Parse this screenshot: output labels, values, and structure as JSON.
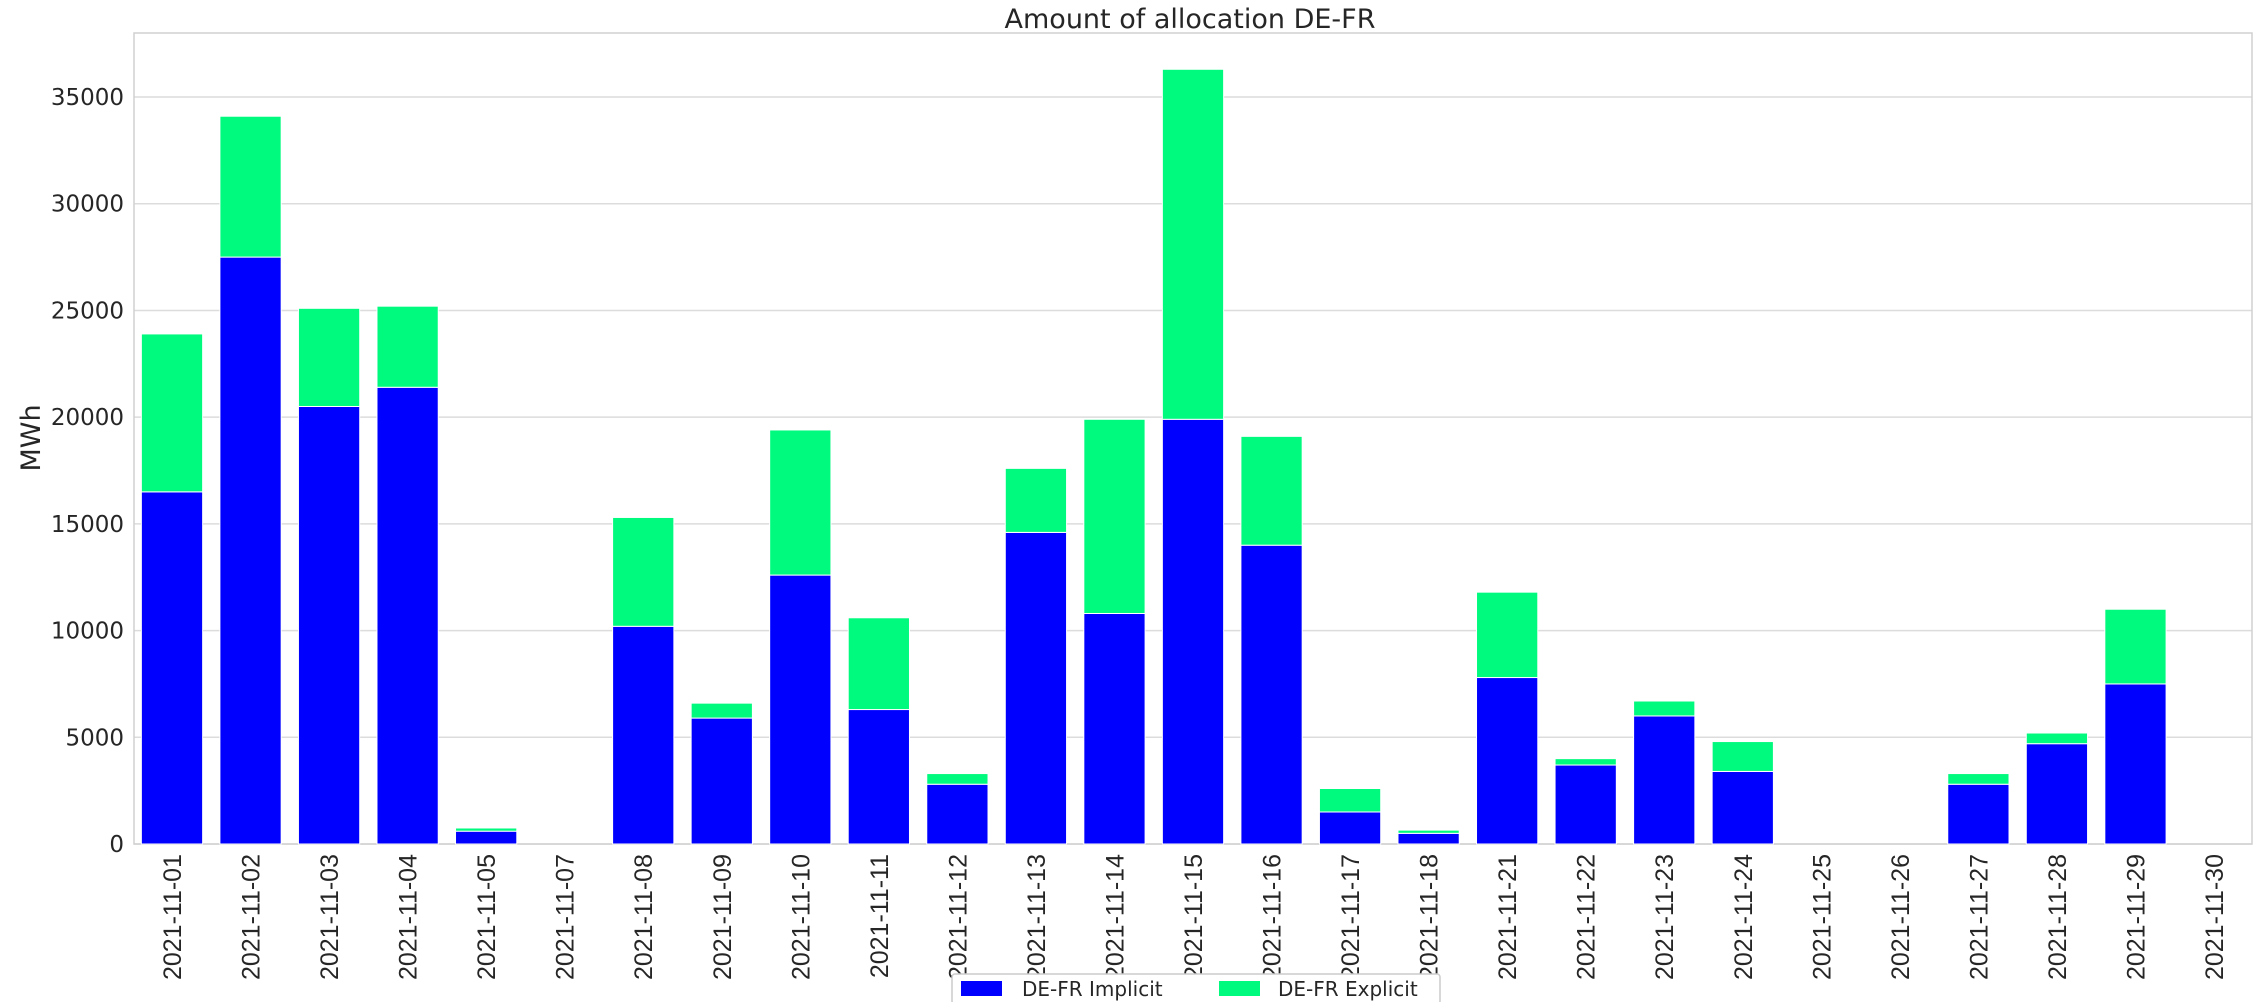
{
  "chart_data": {
    "type": "bar",
    "stacked": true,
    "title": "Amount of allocation DE-FR",
    "xlabel": "",
    "ylabel": "MWh",
    "ylim": [
      0,
      38000
    ],
    "yticks": [
      0,
      5000,
      10000,
      15000,
      20000,
      25000,
      30000,
      35000
    ],
    "grid": "y",
    "legend_position": "bottom-center",
    "categories": [
      "2021-11-01",
      "2021-11-02",
      "2021-11-03",
      "2021-11-04",
      "2021-11-05",
      "2021-11-07",
      "2021-11-08",
      "2021-11-09",
      "2021-11-10",
      "2021-11-11",
      "2021-11-12",
      "2021-11-13",
      "2021-11-14",
      "2021-11-15",
      "2021-11-16",
      "2021-11-17",
      "2021-11-18",
      "2021-11-21",
      "2021-11-22",
      "2021-11-23",
      "2021-11-24",
      "2021-11-25",
      "2021-11-26",
      "2021-11-27",
      "2021-11-28",
      "2021-11-29",
      "2021-11-30"
    ],
    "series": [
      {
        "name": "DE-FR Implicit",
        "color": "#0000ff",
        "values": [
          16500,
          27500,
          20500,
          21400,
          600,
          0,
          10200,
          5900,
          12600,
          6300,
          2800,
          14600,
          10800,
          19900,
          14000,
          1500,
          500,
          7800,
          3700,
          6000,
          3400,
          0,
          0,
          2800,
          4700,
          7500,
          0
        ]
      },
      {
        "name": "DE-FR Explicit",
        "color": "#00fa7d",
        "values": [
          7400,
          6600,
          4600,
          3800,
          150,
          0,
          5100,
          700,
          6800,
          4300,
          500,
          3000,
          9100,
          16400,
          5100,
          1100,
          150,
          4000,
          300,
          700,
          1400,
          0,
          0,
          500,
          500,
          3500,
          0
        ]
      }
    ]
  }
}
